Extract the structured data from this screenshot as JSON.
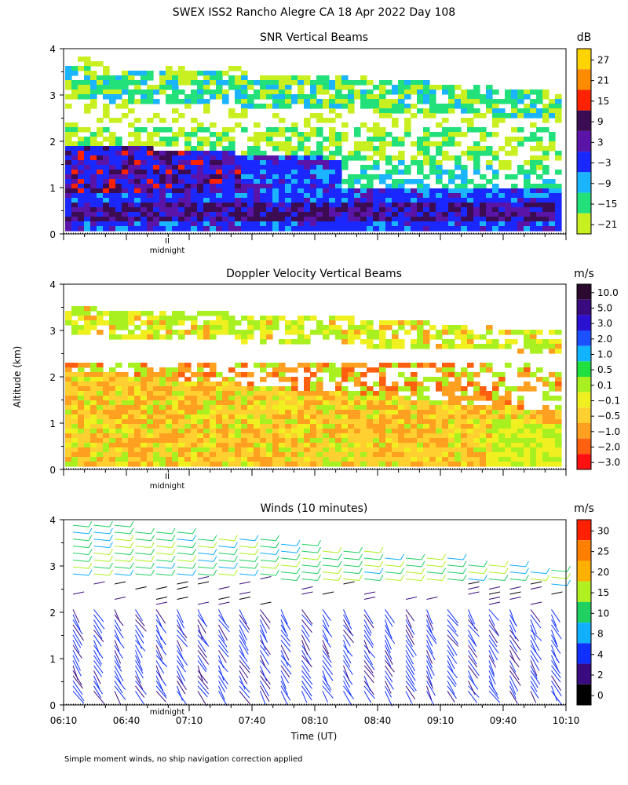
{
  "main_title": "SWEX ISS2 Rancho Alegre CA  18 Apr 2022 Day 108",
  "ylabel": "Altitude (km)",
  "xlabel": "Time (UT)",
  "midnight_label": "midnight",
  "footnote": "Simple moment winds, no ship navigation correction applied",
  "chart_data": [
    {
      "type": "heatmap",
      "title": "SNR Vertical Beams",
      "unit": "dB",
      "ylim": [
        0,
        4
      ],
      "yticks": [
        "0",
        "1",
        "2",
        "3",
        "4"
      ],
      "colorbar": {
        "labels": [
          "27",
          "21",
          "15",
          "9",
          "3",
          "−3",
          "−9",
          "−15",
          "−21"
        ],
        "colors": [
          "#ffd400",
          "#ff8c00",
          "#ff2200",
          "#3c0c52",
          "#5a14a8",
          "#1a28ff",
          "#1ab4ff",
          "#22e07a",
          "#c8f020"
        ]
      }
    },
    {
      "type": "heatmap",
      "title": "Doppler Velocity Vertical Beams",
      "unit": "m/s",
      "ylim": [
        0,
        4
      ],
      "yticks": [
        "0",
        "1",
        "2",
        "3",
        "4"
      ],
      "colorbar": {
        "labels": [
          "10.0",
          "5.0",
          "3.0",
          "2.0",
          "1.0",
          "0.5",
          "0.1",
          "−0.1",
          "−0.5",
          "−1.0",
          "−2.0",
          "−3.0"
        ],
        "colors": [
          "#2a0a2e",
          "#3a0a80",
          "#2a10d0",
          "#1a50ff",
          "#10b4ff",
          "#20e040",
          "#a8f020",
          "#f0f020",
          "#ffd030",
          "#ffa020",
          "#ff6010",
          "#ff1010"
        ]
      }
    },
    {
      "type": "scatter",
      "title": "Winds (10 minutes)",
      "unit": "m/s",
      "ylim": [
        0,
        4
      ],
      "yticks": [
        "0",
        "1",
        "2",
        "3",
        "4"
      ],
      "xticks": [
        "06:10",
        "06:40",
        "07:10",
        "07:40",
        "08:10",
        "08:40",
        "09:10",
        "09:40",
        "10:10"
      ],
      "colorbar": {
        "labels": [
          "30",
          "25",
          "20",
          "15",
          "10",
          "8",
          "4",
          "2",
          "0"
        ],
        "colors": [
          "#ff2000",
          "#ff8000",
          "#ffb000",
          "#b0f020",
          "#20d060",
          "#10b0ff",
          "#1030ff",
          "#3a0a80",
          "#000000"
        ]
      }
    }
  ]
}
